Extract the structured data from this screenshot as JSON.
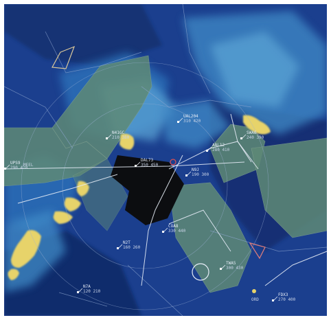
{
  "display": {
    "background": "#1b3f8e",
    "sector_fill": "#5f8a76",
    "weather_fill": "#e7d36a",
    "mask_fill": "#0c0d10",
    "line_color": "#e6ecf6",
    "cloud_colors": [
      "#2e76bd",
      "#3f8bc7",
      "#5aa3d4"
    ]
  },
  "tracks": [
    {
      "id": "track-1",
      "line1": "UAL204",
      "line2": "310 420"
    },
    {
      "id": "track-2",
      "line1": "N41GC",
      "line2": "210 380"
    },
    {
      "id": "track-3",
      "line1": "DAL73",
      "line2": "350 450"
    },
    {
      "id": "track-4",
      "line1": "AAL12",
      "line2": "280 410"
    },
    {
      "id": "track-5",
      "line1": "N9J",
      "line2": "190 300"
    },
    {
      "id": "track-6",
      "line1": "SWA6",
      "line2": "240 390"
    },
    {
      "id": "track-7",
      "line1": "COA8",
      "line2": "330 440"
    },
    {
      "id": "track-8",
      "line1": "N2T",
      "line2": "160 260"
    },
    {
      "id": "track-9",
      "line1": "TWA5",
      "line2": "300 430"
    },
    {
      "id": "track-10",
      "line1": "N7A",
      "line2": "120 210"
    },
    {
      "id": "track-11",
      "line1": "FDX3",
      "line2": "270 400"
    },
    {
      "id": "track-12",
      "line1": "UPS9",
      "line2": "290 420"
    }
  ],
  "fixes": [
    {
      "id": "fix-1",
      "label": "MEEL"
    },
    {
      "id": "fix-2",
      "label": "ORD"
    }
  ]
}
